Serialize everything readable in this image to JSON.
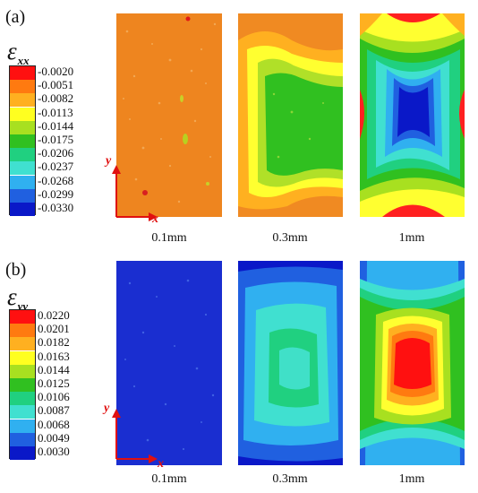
{
  "panels": [
    {
      "label": "(a)",
      "symbol": "ε",
      "subscript": "xx",
      "legend": {
        "values": [
          "-0.0020",
          "-0.0051",
          "-0.0082",
          "-0.0113",
          "-0.0144",
          "-0.0175",
          "-0.0206",
          "-0.0237",
          "-0.0268",
          "-0.0299",
          "-0.0330"
        ],
        "colors": [
          "#ff1010",
          "#ff7a10",
          "#ffb020",
          "#ffff20",
          "#a8e020",
          "#30c020",
          "#20d080",
          "#40e0d0",
          "#30b0f0",
          "#2060e0",
          "#0a18c8"
        ]
      },
      "axes": {
        "x": "x",
        "y": "y"
      },
      "captions": [
        "0.1mm",
        "0.3mm",
        "1mm"
      ]
    },
    {
      "label": "(b)",
      "symbol": "ε",
      "subscript": "yy",
      "legend": {
        "values": [
          "0.0220",
          "0.0201",
          "0.0182",
          "0.0163",
          "0.0144",
          "0.0125",
          "0.0106",
          "0.0087",
          "0.0068",
          "0.0049",
          "0.0030"
        ],
        "colors": [
          "#ff1010",
          "#ff7a10",
          "#ffb020",
          "#ffff20",
          "#a8e020",
          "#30c020",
          "#20d080",
          "#40e0d0",
          "#30b0f0",
          "#2060e0",
          "#0a18c8"
        ]
      },
      "axes": {
        "x": "x",
        "y": "y"
      },
      "captions": [
        "0.1mm",
        "0.3mm",
        "1mm"
      ]
    }
  ]
}
